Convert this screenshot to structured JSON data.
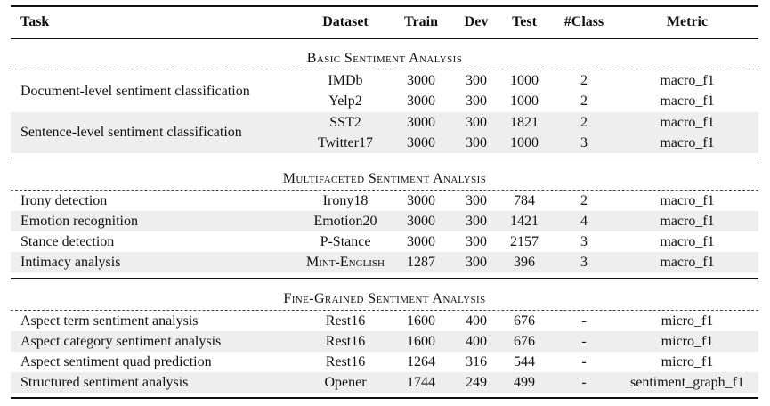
{
  "columns": [
    "Task",
    "Dataset",
    "Train",
    "Dev",
    "Test",
    "#Class",
    "Metric"
  ],
  "sections": [
    {
      "title": "Basic Sentiment Analysis",
      "groups": [
        {
          "task": "Document-level sentiment classification",
          "rows": [
            {
              "dataset": "IMDb",
              "train": "3000",
              "dev": "300",
              "test": "1000",
              "classes": "2",
              "metric": "macro_f1"
            },
            {
              "dataset": "Yelp2",
              "train": "3000",
              "dev": "300",
              "test": "1000",
              "classes": "2",
              "metric": "macro_f1"
            }
          ]
        },
        {
          "task": "Sentence-level sentiment classification",
          "rows": [
            {
              "dataset": "SST2",
              "train": "3000",
              "dev": "300",
              "test": "1821",
              "classes": "2",
              "metric": "macro_f1"
            },
            {
              "dataset": "Twitter17",
              "train": "3000",
              "dev": "300",
              "test": "1000",
              "classes": "3",
              "metric": "macro_f1"
            }
          ]
        }
      ]
    },
    {
      "title": "Multifaceted Sentiment Analysis",
      "rows": [
        {
          "task": "Irony detection",
          "dataset": "Irony18",
          "train": "3000",
          "dev": "300",
          "test": "784",
          "classes": "2",
          "metric": "macro_f1"
        },
        {
          "task": "Emotion recognition",
          "dataset": "Emotion20",
          "train": "3000",
          "dev": "300",
          "test": "1421",
          "classes": "4",
          "metric": "macro_f1"
        },
        {
          "task": "Stance detection",
          "dataset": "P-Stance",
          "train": "3000",
          "dev": "300",
          "test": "2157",
          "classes": "3",
          "metric": "macro_f1"
        },
        {
          "task": "Intimacy analysis",
          "dataset": "Mint-English",
          "train": "1287",
          "dev": "300",
          "test": "396",
          "classes": "3",
          "metric": "macro_f1"
        }
      ]
    },
    {
      "title": "Fine-Grained Sentiment Analysis",
      "rows": [
        {
          "task": "Aspect term sentiment analysis",
          "dataset": "Rest16",
          "train": "1600",
          "dev": "400",
          "test": "676",
          "classes": "-",
          "metric": "micro_f1"
        },
        {
          "task": "Aspect category sentiment analysis",
          "dataset": "Rest16",
          "train": "1600",
          "dev": "400",
          "test": "676",
          "classes": "-",
          "metric": "micro_f1"
        },
        {
          "task": "Aspect sentiment quad prediction",
          "dataset": "Rest16",
          "train": "1264",
          "dev": "316",
          "test": "544",
          "classes": "-",
          "metric": "micro_f1"
        },
        {
          "task": "Structured sentiment analysis",
          "dataset": "Opener",
          "train": "1744",
          "dev": "249",
          "test": "499",
          "classes": "-",
          "metric": "sentiment_graph_f1"
        }
      ]
    }
  ]
}
